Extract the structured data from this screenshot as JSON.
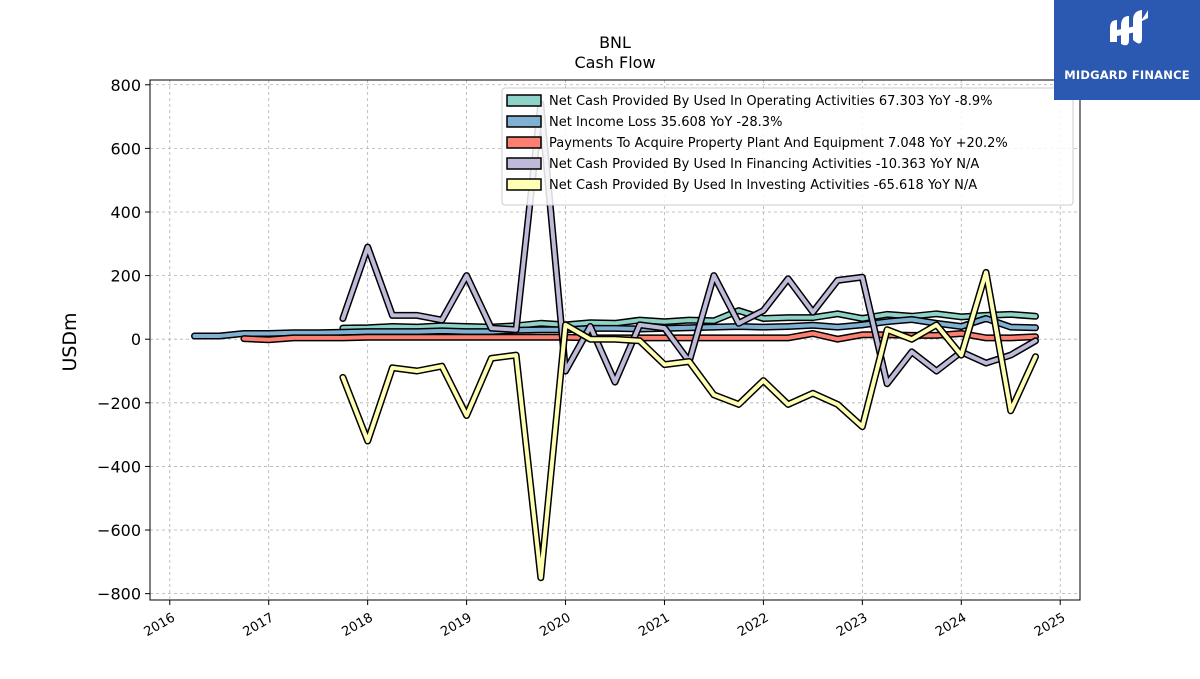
{
  "brand": {
    "name": "MIDGARD FINANCE",
    "color": "#2b58b0",
    "icon": "midgard-logo-icon"
  },
  "chart_data": {
    "type": "line",
    "title": "BNL",
    "subtitle": "Cash Flow",
    "ylabel": "USDm",
    "xlabel": "",
    "xlim": [
      2015.8,
      2025.2
    ],
    "ylim": [
      -820,
      815
    ],
    "yticks": [
      800,
      600,
      400,
      200,
      0,
      -200,
      -400,
      -600,
      -800
    ],
    "ytick_labels": [
      "800",
      "600",
      "400",
      "200",
      "0",
      "−200",
      "−400",
      "−600",
      "−800"
    ],
    "xticks": [
      2016,
      2017,
      2018,
      2019,
      2020,
      2021,
      2022,
      2023,
      2024,
      2025
    ],
    "xtick_labels": [
      "2016",
      "2017",
      "2018",
      "2019",
      "2020",
      "2021",
      "2022",
      "2023",
      "2024",
      "2025"
    ],
    "grid": true,
    "legend_position": "top-right",
    "series": [
      {
        "name": "Net Cash Provided By Used In Operating Activities",
        "legend_label": "Net Cash Provided By Used In Operating Activities  67.303 YoY -8.9%",
        "color": "#8dd3c7",
        "x": [
          2017.75,
          2018.0,
          2018.25,
          2018.5,
          2018.75,
          2019.0,
          2019.25,
          2019.5,
          2019.75,
          2020.0,
          2020.25,
          2020.5,
          2020.75,
          2021.0,
          2021.25,
          2021.5,
          2021.75,
          2022.0,
          2022.25,
          2022.5,
          2022.75,
          2023.0,
          2023.25,
          2023.5,
          2023.75,
          2024.0,
          2024.25,
          2024.5,
          2024.75
        ],
        "y": [
          35,
          36,
          40,
          38,
          42,
          40,
          38,
          42,
          50,
          45,
          52,
          50,
          60,
          55,
          60,
          58,
          90,
          65,
          68,
          68,
          80,
          65,
          78,
          72,
          80,
          70,
          75,
          78,
          72
        ]
      },
      {
        "name": "Net Income Loss",
        "legend_label": "Net Income Loss  35.608 YoY -28.3%",
        "color": "#80b1d3",
        "x": [
          2016.25,
          2016.5,
          2016.75,
          2017.0,
          2017.25,
          2017.5,
          2017.75,
          2018.0,
          2018.25,
          2018.5,
          2018.75,
          2019.0,
          2019.25,
          2019.5,
          2019.75,
          2020.0,
          2020.25,
          2020.5,
          2020.75,
          2021.0,
          2021.25,
          2021.5,
          2021.75,
          2022.0,
          2022.25,
          2022.5,
          2022.75,
          2023.0,
          2023.25,
          2023.5,
          2023.75,
          2024.0,
          2024.25,
          2024.5,
          2024.75
        ],
        "y": [
          10,
          10,
          18,
          18,
          20,
          20,
          22,
          24,
          24,
          24,
          26,
          24,
          24,
          28,
          30,
          30,
          34,
          34,
          32,
          34,
          36,
          38,
          40,
          38,
          40,
          44,
          38,
          45,
          55,
          62,
          50,
          40,
          65,
          38,
          36
        ]
      },
      {
        "name": "Payments To Acquire Property Plant And Equipment",
        "legend_label": "Payments To Acquire Property Plant And Equipment  7.048 YoY +20.2%",
        "color": "#fb8072",
        "x": [
          2016.75,
          2017.0,
          2017.25,
          2017.5,
          2017.75,
          2018.0,
          2018.25,
          2018.5,
          2018.75,
          2019.0,
          2019.25,
          2019.5,
          2019.75,
          2020.0,
          2020.25,
          2020.5,
          2020.75,
          2021.0,
          2021.25,
          2021.5,
          2021.75,
          2022.0,
          2022.25,
          2022.5,
          2022.75,
          2023.0,
          2023.25,
          2023.5,
          2023.75,
          2024.0,
          2024.25,
          2024.5,
          2024.75
        ],
        "y": [
          2,
          -2,
          4,
          4,
          4,
          6,
          6,
          6,
          6,
          6,
          6,
          6,
          6,
          6,
          4,
          4,
          4,
          4,
          4,
          4,
          4,
          4,
          4,
          18,
          0,
          14,
          14,
          12,
          12,
          18,
          4,
          4,
          8
        ]
      },
      {
        "name": "Net Cash Provided By Used In Financing Activities",
        "legend_label": "Net Cash Provided By Used In Financing Activities  -10.363 YoY N/A",
        "color": "#bebada",
        "x": [
          2017.75,
          2018.0,
          2018.25,
          2018.5,
          2018.75,
          2019.0,
          2019.25,
          2019.5,
          2019.75,
          2020.0,
          2020.25,
          2020.5,
          2020.75,
          2021.0,
          2021.25,
          2021.5,
          2021.75,
          2022.0,
          2022.25,
          2022.5,
          2022.75,
          2023.0,
          2023.25,
          2023.5,
          2023.75,
          2024.0,
          2024.25,
          2024.5,
          2024.75
        ],
        "y": [
          65,
          290,
          75,
          75,
          60,
          200,
          35,
          30,
          740,
          -100,
          40,
          -135,
          45,
          35,
          -70,
          200,
          50,
          90,
          190,
          85,
          185,
          195,
          -140,
          -40,
          -100,
          -40,
          -75,
          -50,
          -5
        ]
      },
      {
        "name": "Net Cash Provided By Used In Investing Activities",
        "legend_label": "Net Cash Provided By Used In Investing Activities  -65.618 YoY N/A",
        "color": "#ffffb3",
        "x": [
          2017.75,
          2018.0,
          2018.25,
          2018.5,
          2018.75,
          2019.0,
          2019.25,
          2019.5,
          2019.75,
          2020.0,
          2020.25,
          2020.5,
          2020.75,
          2021.0,
          2021.25,
          2021.5,
          2021.75,
          2022.0,
          2022.25,
          2022.5,
          2022.75,
          2023.0,
          2023.25,
          2023.5,
          2023.75,
          2024.0,
          2024.25,
          2024.5,
          2024.75
        ],
        "y": [
          -120,
          -320,
          -90,
          -100,
          -85,
          -240,
          -60,
          -50,
          -750,
          45,
          0,
          0,
          -5,
          -80,
          -70,
          -175,
          -205,
          -130,
          -205,
          -170,
          -205,
          -275,
          30,
          0,
          45,
          -50,
          210,
          -225,
          -55
        ]
      }
    ]
  }
}
